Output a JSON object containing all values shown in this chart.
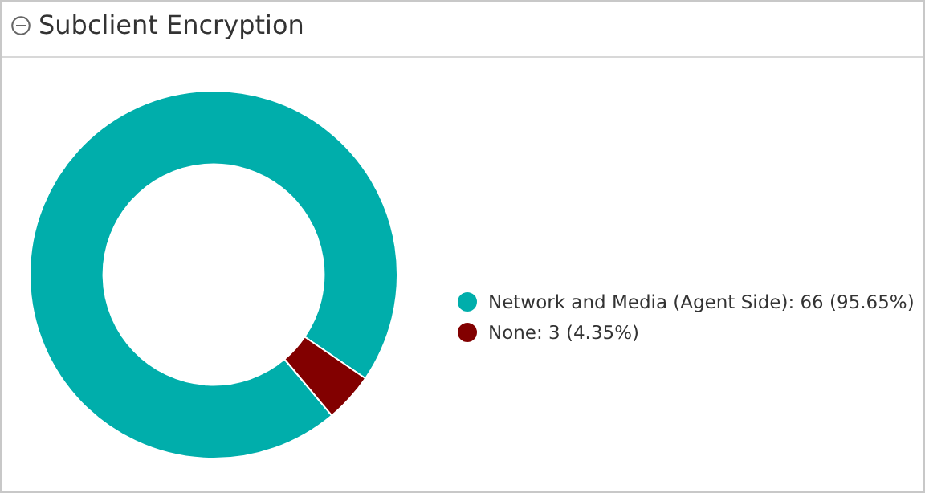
{
  "chart_data": {
    "type": "donut",
    "title": "Subclient Encryption",
    "categories": [
      "Network and Media (Agent Side): 66 (95.65%)",
      "None: 3 (4.35%)"
    ],
    "values": [
      66,
      3
    ],
    "colors": [
      "#00aeab",
      "#820000"
    ],
    "legend": "right"
  }
}
